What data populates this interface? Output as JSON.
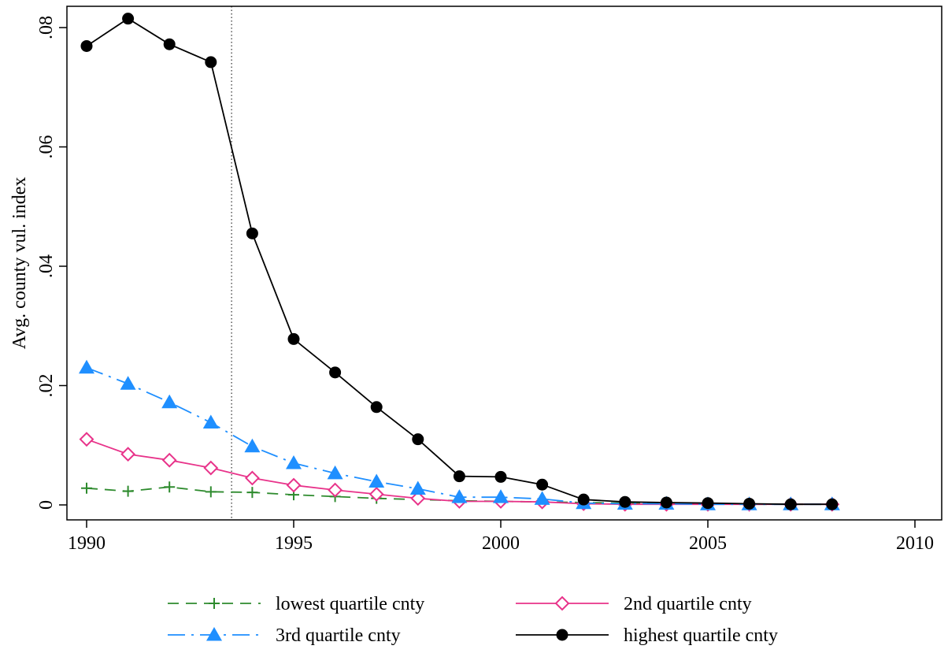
{
  "chart_data": {
    "type": "line",
    "xlabel": "",
    "ylabel": "Avg. county vul. index",
    "xlim": [
      1990,
      2010
    ],
    "ylim": [
      0,
      0.082
    ],
    "x_ticks": [
      1990,
      1995,
      2000,
      2005,
      2010
    ],
    "x_tick_labels": [
      "1990",
      "1995",
      "2000",
      "2005",
      "2010"
    ],
    "y_ticks": [
      0,
      0.02,
      0.04,
      0.06,
      0.08
    ],
    "y_tick_labels": [
      "0",
      ".02",
      ".04",
      ".06",
      ".08"
    ],
    "grid": false,
    "legend_position": "bottom",
    "reference_line_x": 1993.5,
    "x": [
      1990,
      1991,
      1992,
      1993,
      1994,
      1995,
      1996,
      1997,
      1998,
      1999,
      2000,
      2001,
      2002,
      2003,
      2004,
      2005,
      2006,
      2007,
      2008
    ],
    "series": [
      {
        "name": "lowest quartile cnty",
        "color": "#2e8b2e",
        "marker": "plus",
        "line_style": "dashed",
        "values": [
          0.0028,
          0.0023,
          0.003,
          0.0022,
          0.0021,
          0.0017,
          0.0014,
          0.0011,
          0.0009,
          0.0007,
          0.0006,
          0.0005,
          0.0004,
          0.0003,
          0.0002,
          0.0002,
          0.0001,
          0.0001,
          0.0001
        ]
      },
      {
        "name": "2nd quartile cnty",
        "color": "#e8338a",
        "marker": "diamond-open",
        "line_style": "solid",
        "values": [
          0.011,
          0.0085,
          0.0075,
          0.0062,
          0.0045,
          0.0033,
          0.0025,
          0.0018,
          0.0011,
          0.0006,
          0.0006,
          0.0005,
          0.0002,
          0.0001,
          0.0001,
          0.0001,
          0.0001,
          0.0001,
          0.0001
        ]
      },
      {
        "name": "3rd quartile cnty",
        "color": "#1f8fff",
        "marker": "triangle",
        "line_style": "dash-dot",
        "values": [
          0.023,
          0.0203,
          0.0172,
          0.0138,
          0.0098,
          0.007,
          0.0053,
          0.0039,
          0.0027,
          0.0013,
          0.0013,
          0.001,
          0.0003,
          0.0002,
          0.0002,
          0.0001,
          0.0001,
          0.0001,
          0.0001
        ]
      },
      {
        "name": "highest quartile cnty",
        "color": "#000000",
        "marker": "circle",
        "line_style": "solid",
        "values": [
          0.0769,
          0.0815,
          0.0772,
          0.0742,
          0.0455,
          0.0278,
          0.0222,
          0.0164,
          0.011,
          0.0048,
          0.0047,
          0.0034,
          0.0009,
          0.0005,
          0.0004,
          0.0003,
          0.0002,
          0.0001,
          0.0001
        ]
      }
    ]
  }
}
